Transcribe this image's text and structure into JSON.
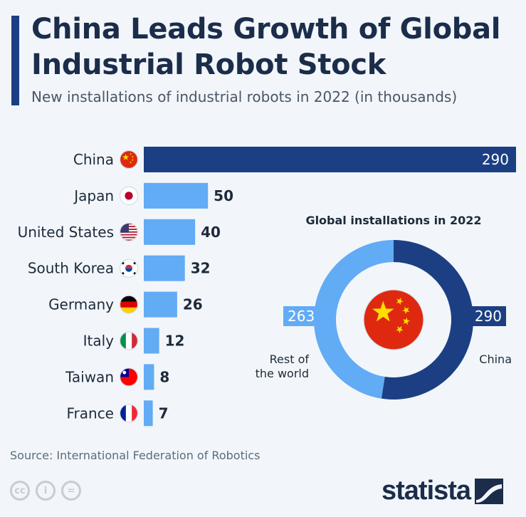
{
  "header": {
    "title": "China Leads Growth of Global Industrial Robot Stock",
    "subtitle": "New installations of industrial robots in 2022 (in thousands)"
  },
  "chart_data": [
    {
      "type": "bar",
      "orientation": "horizontal",
      "categories": [
        "China",
        "Japan",
        "United States",
        "South Korea",
        "Germany",
        "Italy",
        "Taiwan",
        "France"
      ],
      "flags": [
        "china-flag-icon",
        "japan-flag-icon",
        "usa-flag-icon",
        "south-korea-flag-icon",
        "germany-flag-icon",
        "italy-flag-icon",
        "taiwan-flag-icon",
        "france-flag-icon"
      ],
      "values": [
        290,
        50,
        40,
        32,
        26,
        12,
        8,
        7
      ],
      "xlim": [
        0,
        290
      ],
      "colors": {
        "highlight": "#1c3f83",
        "default": "#62abf5"
      },
      "grid": false
    },
    {
      "type": "pie",
      "style": "donut",
      "title": "Global installations in 2022",
      "slices": [
        {
          "label": "China",
          "value": 290,
          "color": "#1c3f83"
        },
        {
          "label": "Rest of the world",
          "label_lines": [
            "Rest of",
            "the world"
          ],
          "value": 263,
          "color": "#62abf5"
        }
      ],
      "center_icon": "china-flag-icon"
    }
  ],
  "footer": {
    "source": "Source: International Federation of Robotics",
    "license_icons": [
      "cc-icon",
      "attribution-icon",
      "no-derivatives-icon"
    ],
    "license_glyphs": [
      "cc",
      "i",
      "="
    ],
    "brand": "statista"
  }
}
